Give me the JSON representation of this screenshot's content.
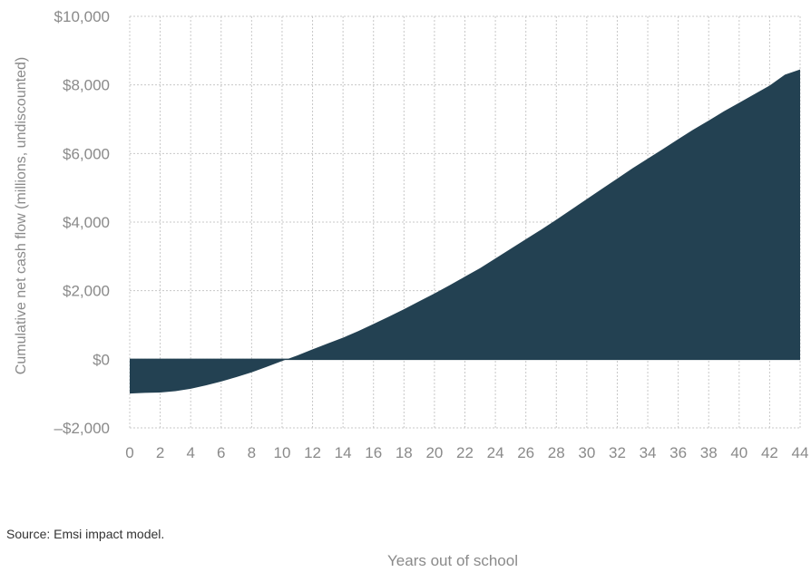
{
  "chart_data": {
    "type": "area",
    "title": "",
    "xlabel": "Years out of school",
    "ylabel": "Cumulative net cash flow (millions, undiscounted)",
    "x_ticks": [
      0,
      2,
      4,
      6,
      8,
      10,
      12,
      14,
      16,
      18,
      20,
      22,
      24,
      26,
      28,
      30,
      32,
      34,
      36,
      38,
      40,
      42,
      44
    ],
    "y_ticks": [
      {
        "value": 10000,
        "label": "$10,000"
      },
      {
        "value": 8000,
        "label": "$8,000"
      },
      {
        "value": 6000,
        "label": "$6,000"
      },
      {
        "value": 4000,
        "label": "$4,000"
      },
      {
        "value": 2000,
        "label": "$2,000"
      },
      {
        "value": 0,
        "label": "$0"
      },
      {
        "value": -2000,
        "label": "–$2,000"
      }
    ],
    "xlim": [
      0,
      44
    ],
    "ylim": [
      -2000,
      10000
    ],
    "grid": true,
    "series": [
      {
        "color": "#234152",
        "x": [
          0,
          1,
          2,
          3,
          4,
          5,
          6,
          7,
          8,
          9,
          10,
          11,
          12,
          13,
          14,
          15,
          16,
          17,
          18,
          19,
          20,
          21,
          22,
          23,
          24,
          25,
          26,
          27,
          28,
          29,
          30,
          31,
          32,
          33,
          34,
          35,
          36,
          37,
          38,
          39,
          40,
          41,
          42,
          43,
          44
        ],
        "values": [
          -1000,
          -980,
          -970,
          -930,
          -860,
          -760,
          -650,
          -520,
          -380,
          -220,
          -50,
          110,
          290,
          460,
          630,
          820,
          1030,
          1240,
          1460,
          1690,
          1920,
          2160,
          2410,
          2660,
          2940,
          3220,
          3500,
          3780,
          4070,
          4370,
          4670,
          4970,
          5270,
          5570,
          5850,
          6130,
          6420,
          6700,
          6960,
          7230,
          7480,
          7730,
          7980,
          8300,
          8450
        ]
      }
    ]
  },
  "source": "Source: Emsi impact model."
}
